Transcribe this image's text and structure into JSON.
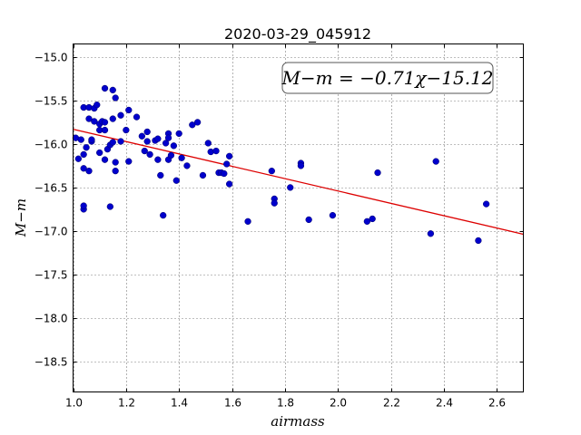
{
  "chart_data": {
    "type": "scatter",
    "title": "2020-03-29_045912",
    "xlabel": "airmass",
    "ylabel": "M−m",
    "xlim": [
      1.0,
      2.7
    ],
    "ylim": [
      -18.85,
      -14.85
    ],
    "y_inverted": true,
    "xticks": [
      1.0,
      1.2,
      1.4,
      1.6,
      1.8,
      2.0,
      2.2,
      2.4,
      2.6
    ],
    "xtick_labels": [
      "1.0",
      "1.2",
      "1.4",
      "1.6",
      "1.8",
      "2.0",
      "2.2",
      "2.4",
      "2.6"
    ],
    "yticks": [
      -15.0,
      -15.5,
      -16.0,
      -16.5,
      -17.0,
      -17.5,
      -18.0,
      -18.5
    ],
    "ytick_labels": [
      "−15.0",
      "−15.5",
      "−16.0",
      "−16.5",
      "−17.0",
      "−17.5",
      "−18.0",
      "−18.5"
    ],
    "grid": true,
    "point_color": "#0000cc",
    "fit_color": "#dd0000",
    "annotation": "M−m = −0.71χ−15.12",
    "fit": {
      "slope": -0.71,
      "intercept": -15.12
    },
    "points": [
      [
        1.01,
        -15.93
      ],
      [
        1.02,
        -16.17
      ],
      [
        1.03,
        -15.95
      ],
      [
        1.04,
        -15.58
      ],
      [
        1.04,
        -16.12
      ],
      [
        1.04,
        -16.28
      ],
      [
        1.04,
        -16.75
      ],
      [
        1.04,
        -16.71
      ],
      [
        1.05,
        -16.04
      ],
      [
        1.06,
        -16.31
      ],
      [
        1.06,
        -15.71
      ],
      [
        1.06,
        -15.58
      ],
      [
        1.07,
        -15.97
      ],
      [
        1.07,
        -15.95
      ],
      [
        1.08,
        -15.59
      ],
      [
        1.08,
        -15.74
      ],
      [
        1.09,
        -15.55
      ],
      [
        1.1,
        -15.77
      ],
      [
        1.1,
        -15.84
      ],
      [
        1.1,
        -16.1
      ],
      [
        1.11,
        -15.74
      ],
      [
        1.12,
        -15.36
      ],
      [
        1.12,
        -15.75
      ],
      [
        1.12,
        -15.84
      ],
      [
        1.12,
        -16.18
      ],
      [
        1.13,
        -16.06
      ],
      [
        1.14,
        -16.01
      ],
      [
        1.14,
        -16.72
      ],
      [
        1.15,
        -15.38
      ],
      [
        1.15,
        -15.71
      ],
      [
        1.15,
        -15.98
      ],
      [
        1.16,
        -15.47
      ],
      [
        1.16,
        -16.21
      ],
      [
        1.16,
        -16.31
      ],
      [
        1.18,
        -15.97
      ],
      [
        1.18,
        -15.67
      ],
      [
        1.2,
        -15.84
      ],
      [
        1.21,
        -15.61
      ],
      [
        1.21,
        -16.2
      ],
      [
        1.24,
        -15.69
      ],
      [
        1.26,
        -15.91
      ],
      [
        1.27,
        -16.08
      ],
      [
        1.28,
        -15.86
      ],
      [
        1.28,
        -15.97
      ],
      [
        1.29,
        -16.12
      ],
      [
        1.31,
        -15.96
      ],
      [
        1.32,
        -16.18
      ],
      [
        1.32,
        -15.94
      ],
      [
        1.33,
        -16.36
      ],
      [
        1.34,
        -16.82
      ],
      [
        1.35,
        -15.99
      ],
      [
        1.36,
        -15.88
      ],
      [
        1.36,
        -15.93
      ],
      [
        1.36,
        -16.18
      ],
      [
        1.37,
        -16.13
      ],
      [
        1.38,
        -16.02
      ],
      [
        1.39,
        -16.42
      ],
      [
        1.4,
        -15.88
      ],
      [
        1.41,
        -16.16
      ],
      [
        1.43,
        -16.25
      ],
      [
        1.45,
        -15.78
      ],
      [
        1.47,
        -15.75
      ],
      [
        1.49,
        -16.36
      ],
      [
        1.51,
        -15.99
      ],
      [
        1.52,
        -16.09
      ],
      [
        1.54,
        -16.08
      ],
      [
        1.55,
        -16.33
      ],
      [
        1.56,
        -16.33
      ],
      [
        1.57,
        -16.34
      ],
      [
        1.58,
        -16.23
      ],
      [
        1.59,
        -16.46
      ],
      [
        1.59,
        -16.14
      ],
      [
        1.66,
        -16.89
      ],
      [
        1.75,
        -16.31
      ],
      [
        1.76,
        -16.63
      ],
      [
        1.76,
        -16.68
      ],
      [
        1.82,
        -16.5
      ],
      [
        1.86,
        -16.22
      ],
      [
        1.86,
        -16.25
      ],
      [
        1.89,
        -16.87
      ],
      [
        1.98,
        -16.82
      ],
      [
        2.11,
        -16.89
      ],
      [
        2.13,
        -16.86
      ],
      [
        2.15,
        -16.33
      ],
      [
        2.35,
        -17.03
      ],
      [
        2.37,
        -16.2
      ],
      [
        2.53,
        -17.11
      ],
      [
        2.56,
        -16.69
      ]
    ]
  }
}
